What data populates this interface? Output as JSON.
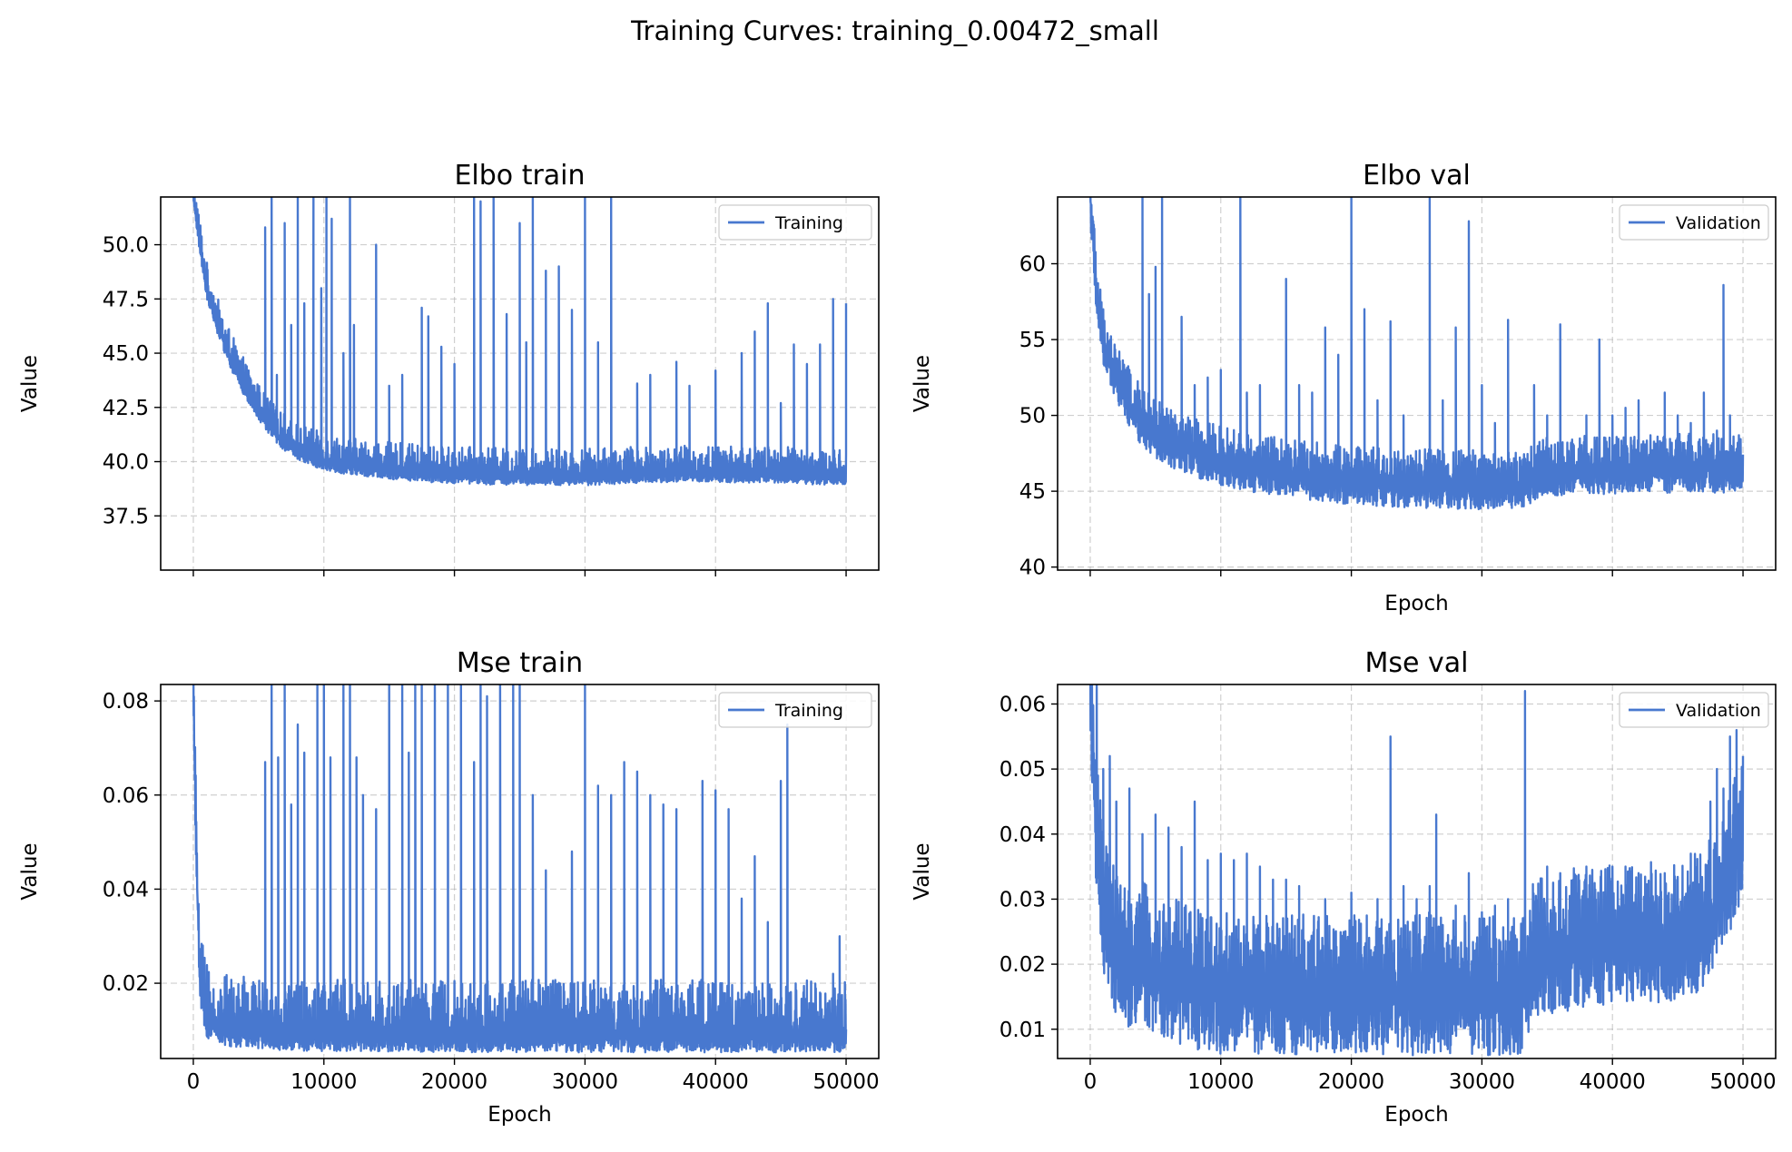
{
  "figure": {
    "suptitle": "Training Curves: training_0.00472_small",
    "line_color": "#4878cf",
    "grid": true
  },
  "chart_data": [
    {
      "type": "line",
      "title": "Elbo train",
      "xlabel": "",
      "ylabel": "Value",
      "xlim": [
        -2500,
        52500
      ],
      "ylim": [
        35.0,
        52.2
      ],
      "xticks": [
        0,
        10000,
        20000,
        30000,
        40000,
        50000
      ],
      "yticks": [
        37.5,
        40.0,
        42.5,
        45.0,
        47.5,
        50.0
      ],
      "ytick_labels": [
        "37.5",
        "40.0",
        "42.5",
        "45.0",
        "47.5",
        "50.0"
      ],
      "show_xtick_labels": false,
      "legend": "top-right",
      "series": [
        {
          "name": "Training",
          "x": [
            0,
            500,
            1000,
            2000,
            3000,
            4000,
            5000,
            6000,
            7000,
            8000,
            10000,
            12000,
            15000,
            18000,
            20000,
            25000,
            30000,
            35000,
            40000,
            45000,
            50000
          ],
          "y": [
            52.2,
            50.0,
            48.0,
            46.0,
            44.5,
            43.3,
            42.3,
            41.5,
            40.9,
            40.5,
            40.0,
            39.8,
            39.6,
            39.45,
            39.4,
            39.3,
            39.3,
            39.45,
            39.45,
            39.4,
            39.3
          ],
          "noise_up": 1.3,
          "noise_down": 0.4,
          "spikes": [
            [
              5500,
              50.8
            ],
            [
              6000,
              52.2
            ],
            [
              6400,
              44.0
            ],
            [
              7000,
              51.0
            ],
            [
              7500,
              46.3
            ],
            [
              8000,
              52.2
            ],
            [
              8500,
              47.3
            ],
            [
              9200,
              52.2
            ],
            [
              9800,
              48.0
            ],
            [
              10200,
              52.2
            ],
            [
              10600,
              51.2
            ],
            [
              11500,
              45.0
            ],
            [
              12000,
              52.2
            ],
            [
              12300,
              46.3
            ],
            [
              14000,
              50.0
            ],
            [
              15000,
              43.5
            ],
            [
              16000,
              44.0
            ],
            [
              17500,
              47.1
            ],
            [
              18000,
              46.7
            ],
            [
              19000,
              45.3
            ],
            [
              20000,
              44.5
            ],
            [
              21500,
              52.2
            ],
            [
              22000,
              52.0
            ],
            [
              23000,
              52.2
            ],
            [
              24000,
              46.8
            ],
            [
              25000,
              51.0
            ],
            [
              25500,
              45.5
            ],
            [
              26000,
              52.2
            ],
            [
              27000,
              48.8
            ],
            [
              28000,
              49.0
            ],
            [
              29000,
              47.0
            ],
            [
              30000,
              52.2
            ],
            [
              31000,
              45.5
            ],
            [
              32000,
              52.2
            ],
            [
              34000,
              43.6
            ],
            [
              35000,
              44.0
            ],
            [
              37000,
              44.6
            ],
            [
              38000,
              43.5
            ],
            [
              40000,
              44.2
            ],
            [
              42000,
              45.0
            ],
            [
              43000,
              46.0
            ],
            [
              44000,
              47.3
            ],
            [
              45000,
              42.7
            ],
            [
              46000,
              45.4
            ],
            [
              47000,
              44.5
            ],
            [
              48000,
              45.4
            ],
            [
              49000,
              47.5
            ],
            [
              50000,
              47.3
            ]
          ]
        }
      ]
    },
    {
      "type": "line",
      "title": "Elbo val",
      "xlabel": "Epoch",
      "ylabel": "Value",
      "xlim": [
        -2500,
        52500
      ],
      "ylim": [
        39.8,
        64.4
      ],
      "xticks": [
        0,
        10000,
        20000,
        30000,
        40000,
        50000
      ],
      "yticks": [
        40,
        45,
        50,
        55,
        60
      ],
      "ytick_labels": [
        "40",
        "45",
        "50",
        "55",
        "60"
      ],
      "show_xtick_labels": false,
      "legend": "top-right",
      "series": [
        {
          "name": "Validation",
          "x": [
            0,
            500,
            1000,
            2000,
            3000,
            4000,
            5000,
            6000,
            8000,
            10000,
            12000,
            15000,
            18000,
            20000,
            25000,
            30000,
            33000,
            35000,
            40000,
            45000,
            50000
          ],
          "y": [
            64.4,
            58.0,
            55.0,
            52.5,
            50.8,
            49.5,
            48.8,
            48.2,
            47.5,
            47.0,
            46.6,
            46.2,
            45.9,
            45.7,
            45.5,
            45.4,
            45.4,
            46.3,
            46.4,
            46.5,
            46.5
          ],
          "noise_up": 2.3,
          "noise_down": 1.6,
          "spikes": [
            [
              3000,
              53.0
            ],
            [
              4000,
              64.4
            ],
            [
              4500,
              58.0
            ],
            [
              5000,
              59.8
            ],
            [
              5500,
              64.4
            ],
            [
              7000,
              56.5
            ],
            [
              8000,
              52.0
            ],
            [
              9000,
              52.5
            ],
            [
              10000,
              53.0
            ],
            [
              11500,
              64.4
            ],
            [
              12000,
              51.5
            ],
            [
              13000,
              52.0
            ],
            [
              15000,
              59.0
            ],
            [
              16000,
              52.0
            ],
            [
              17000,
              51.5
            ],
            [
              18000,
              55.8
            ],
            [
              19000,
              54.0
            ],
            [
              20000,
              64.4
            ],
            [
              21000,
              57.0
            ],
            [
              22000,
              51.0
            ],
            [
              23000,
              56.2
            ],
            [
              24000,
              50.0
            ],
            [
              26000,
              64.4
            ],
            [
              27000,
              51.0
            ],
            [
              28000,
              55.8
            ],
            [
              29000,
              62.8
            ],
            [
              30000,
              52.0
            ],
            [
              31000,
              49.5
            ],
            [
              32000,
              56.3
            ],
            [
              34000,
              52.0
            ],
            [
              35000,
              50.0
            ],
            [
              36000,
              56.0
            ],
            [
              38000,
              50.0
            ],
            [
              39000,
              55.0
            ],
            [
              40000,
              50.0
            ],
            [
              41000,
              50.5
            ],
            [
              42000,
              51.0
            ],
            [
              44000,
              51.5
            ],
            [
              45000,
              50.0
            ],
            [
              46000,
              49.5
            ],
            [
              47000,
              51.5
            ],
            [
              48000,
              49.0
            ],
            [
              48500,
              58.6
            ],
            [
              49000,
              50.0
            ]
          ]
        }
      ]
    },
    {
      "type": "line",
      "title": "Mse train",
      "xlabel": "Epoch",
      "ylabel": "Value",
      "xlim": [
        -2500,
        52500
      ],
      "ylim": [
        0.004,
        0.0835
      ],
      "xticks": [
        0,
        10000,
        20000,
        30000,
        40000,
        50000
      ],
      "xtick_labels": [
        "0",
        "10000",
        "20000",
        "30000",
        "40000",
        "50000"
      ],
      "yticks": [
        0.02,
        0.04,
        0.06,
        0.08
      ],
      "ytick_labels": [
        "0.02",
        "0.04",
        "0.06",
        "0.08"
      ],
      "show_xtick_labels": true,
      "legend": "top-right",
      "series": [
        {
          "name": "Training",
          "x": [
            0,
            200,
            500,
            1000,
            2000,
            3000,
            5000,
            10000,
            15000,
            20000,
            25000,
            30000,
            35000,
            40000,
            45000,
            50000
          ],
          "y": [
            0.0835,
            0.05,
            0.02,
            0.012,
            0.0105,
            0.01,
            0.0095,
            0.009,
            0.009,
            0.0088,
            0.0088,
            0.0088,
            0.0088,
            0.0088,
            0.0088,
            0.0088
          ],
          "noise_up": 0.012,
          "noise_down": 0.0035,
          "spikes": [
            [
              5500,
              0.067
            ],
            [
              6000,
              0.0835
            ],
            [
              6500,
              0.068
            ],
            [
              7000,
              0.0835
            ],
            [
              7500,
              0.058
            ],
            [
              8000,
              0.075
            ],
            [
              8500,
              0.069
            ],
            [
              9500,
              0.0835
            ],
            [
              10000,
              0.0835
            ],
            [
              10500,
              0.068
            ],
            [
              11500,
              0.0835
            ],
            [
              12000,
              0.0835
            ],
            [
              12500,
              0.068
            ],
            [
              13000,
              0.06
            ],
            [
              14000,
              0.057
            ],
            [
              15000,
              0.0835
            ],
            [
              16000,
              0.0835
            ],
            [
              16500,
              0.069
            ],
            [
              17000,
              0.0835
            ],
            [
              17500,
              0.0835
            ],
            [
              18500,
              0.0835
            ],
            [
              19500,
              0.0835
            ],
            [
              20500,
              0.0835
            ],
            [
              21500,
              0.067
            ],
            [
              22000,
              0.0835
            ],
            [
              22500,
              0.081
            ],
            [
              23500,
              0.0835
            ],
            [
              24500,
              0.0835
            ],
            [
              25000,
              0.0835
            ],
            [
              26000,
              0.06
            ],
            [
              27000,
              0.044
            ],
            [
              29000,
              0.048
            ],
            [
              30000,
              0.0835
            ],
            [
              31000,
              0.062
            ],
            [
              32000,
              0.06
            ],
            [
              33000,
              0.067
            ],
            [
              34000,
              0.065
            ],
            [
              35000,
              0.06
            ],
            [
              36000,
              0.058
            ],
            [
              37000,
              0.057
            ],
            [
              39000,
              0.063
            ],
            [
              40000,
              0.061
            ],
            [
              41000,
              0.057
            ],
            [
              42000,
              0.038
            ],
            [
              43000,
              0.047
            ],
            [
              44000,
              0.033
            ],
            [
              45000,
              0.063
            ],
            [
              45500,
              0.075
            ],
            [
              47000,
              0.016
            ],
            [
              48000,
              0.018
            ],
            [
              49000,
              0.022
            ],
            [
              49500,
              0.03
            ]
          ]
        }
      ]
    },
    {
      "type": "line",
      "title": "Mse val",
      "xlabel": "Epoch",
      "ylabel": "Value",
      "xlim": [
        -2500,
        52500
      ],
      "ylim": [
        0.0055,
        0.063
      ],
      "xticks": [
        0,
        10000,
        20000,
        30000,
        40000,
        50000
      ],
      "xtick_labels": [
        "0",
        "10000",
        "20000",
        "30000",
        "40000",
        "50000"
      ],
      "yticks": [
        0.01,
        0.02,
        0.03,
        0.04,
        0.05,
        0.06
      ],
      "ytick_labels": [
        "0.01",
        "0.02",
        "0.03",
        "0.04",
        "0.05",
        "0.06"
      ],
      "show_xtick_labels": true,
      "legend": "top-right",
      "series": [
        {
          "name": "Validation",
          "x": [
            0,
            500,
            1000,
            2000,
            3000,
            4000,
            5000,
            8000,
            10000,
            15000,
            20000,
            25000,
            30000,
            33000,
            34000,
            35000,
            40000,
            45000,
            47000,
            48000,
            49000,
            50000
          ],
          "y": [
            0.063,
            0.04,
            0.028,
            0.022,
            0.02,
            0.021,
            0.019,
            0.017,
            0.016,
            0.016,
            0.016,
            0.016,
            0.016,
            0.016,
            0.021,
            0.022,
            0.024,
            0.024,
            0.026,
            0.03,
            0.035,
            0.04
          ],
          "noise_up": 0.012,
          "noise_down": 0.01,
          "spikes": [
            [
              500,
              0.063
            ],
            [
              1000,
              0.05
            ],
            [
              1500,
              0.052
            ],
            [
              2000,
              0.045
            ],
            [
              3000,
              0.047
            ],
            [
              4000,
              0.04
            ],
            [
              5000,
              0.043
            ],
            [
              6000,
              0.041
            ],
            [
              7000,
              0.038
            ],
            [
              8000,
              0.045
            ],
            [
              9000,
              0.036
            ],
            [
              10000,
              0.037
            ],
            [
              11000,
              0.036
            ],
            [
              12000,
              0.037
            ],
            [
              13000,
              0.035
            ],
            [
              14000,
              0.033
            ],
            [
              15000,
              0.033
            ],
            [
              16000,
              0.032
            ],
            [
              18000,
              0.03
            ],
            [
              20000,
              0.031
            ],
            [
              22000,
              0.03
            ],
            [
              23000,
              0.055
            ],
            [
              24000,
              0.032
            ],
            [
              25000,
              0.03
            ],
            [
              26000,
              0.032
            ],
            [
              26500,
              0.043
            ],
            [
              28000,
              0.029
            ],
            [
              29000,
              0.034
            ],
            [
              30000,
              0.028
            ],
            [
              31000,
              0.029
            ],
            [
              32000,
              0.03
            ],
            [
              33300,
              0.062
            ],
            [
              35000,
              0.035
            ],
            [
              36000,
              0.034
            ],
            [
              37000,
              0.033
            ],
            [
              38000,
              0.035
            ],
            [
              40000,
              0.035
            ],
            [
              41000,
              0.035
            ],
            [
              42000,
              0.034
            ],
            [
              44000,
              0.034
            ],
            [
              46000,
              0.037
            ],
            [
              47500,
              0.045
            ],
            [
              48000,
              0.05
            ],
            [
              48500,
              0.047
            ],
            [
              49000,
              0.055
            ],
            [
              49500,
              0.056
            ],
            [
              50000,
              0.052
            ]
          ]
        }
      ]
    }
  ]
}
